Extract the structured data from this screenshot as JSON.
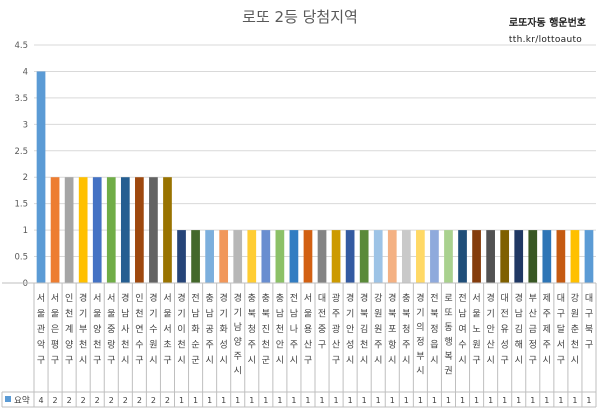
{
  "watermark": {
    "title": "로또자동 행운번호",
    "url": "tth.kr/lottoauto"
  },
  "chart_data": {
    "type": "bar",
    "title": "로또 2등 당첨지역",
    "xlabel": "",
    "ylabel": "",
    "ylim": [
      0,
      4.5
    ],
    "yticks": [
      0,
      0.5,
      1,
      1.5,
      2,
      2.5,
      3,
      3.5,
      4,
      4.5
    ],
    "ytick_labels": [
      "0",
      "0.5",
      "1",
      "1.5",
      "2",
      "2.5",
      "3",
      "3.5",
      "4",
      "4.5"
    ],
    "grid": true,
    "legend": "bottom-table",
    "series": [
      {
        "name": "요약",
        "color": "#5B9BD5"
      }
    ],
    "categories": [
      "서울 관악구",
      "서울 은평구",
      "인천 계양구",
      "경기 부천시",
      "서울 양천구",
      "서울 중랑구",
      "경남 사천시",
      "인천 연수구",
      "경기 수원시",
      "서울 서초구",
      "경기 이천시",
      "전남 화순군",
      "충남 공주시",
      "경기 화성시",
      "경기 남양주시",
      "충북 청주시",
      "충북 진천군",
      "충남 천안시",
      "전남 나주시",
      "서울 용산구",
      "대전 중구",
      "광주 광산구",
      "경기 안성시",
      "경북 김천시",
      "강원 원주시",
      "경북 포항시",
      "충북 청주시",
      "경기 의정부시",
      "전북 정읍시",
      "로또 동행 복권",
      "전남 여수시",
      "서울 노원구",
      "경기 안산시",
      "대전 유성구",
      "경남 김해시",
      "부산 금정구",
      "제주 제주시",
      "대구 달서구",
      "강원 춘천시",
      "대구 북구"
    ],
    "axis_labels": [
      [
        "서",
        "울",
        "관",
        "악",
        "구"
      ],
      [
        "서",
        "울",
        "은",
        "평",
        "구"
      ],
      [
        "인",
        "천",
        "계",
        "양",
        "구"
      ],
      [
        "경",
        "기",
        "부",
        "천",
        "시"
      ],
      [
        "서",
        "울",
        "양",
        "천",
        "구"
      ],
      [
        "서",
        "울",
        "중",
        "랑",
        "구"
      ],
      [
        "경",
        "남",
        "사",
        "천",
        "시"
      ],
      [
        "인",
        "천",
        "연",
        "수",
        "구"
      ],
      [
        "경",
        "기",
        "수",
        "원",
        "시"
      ],
      [
        "서",
        "울",
        "서",
        "초",
        "구"
      ],
      [
        "경",
        "기",
        "이",
        "천",
        "시"
      ],
      [
        "전",
        "남",
        "화",
        "순",
        "군"
      ],
      [
        "충",
        "남",
        "공",
        "주",
        "시"
      ],
      [
        "경",
        "기",
        "화",
        "성",
        "시"
      ],
      [
        "경",
        "기",
        "남",
        "양",
        "주",
        "시"
      ],
      [
        "충",
        "북",
        "청",
        "주",
        "시"
      ],
      [
        "충",
        "북",
        "진",
        "천",
        "군"
      ],
      [
        "충",
        "남",
        "천",
        "안",
        "시"
      ],
      [
        "전",
        "남",
        "나",
        "주",
        "시"
      ],
      [
        "서",
        "울",
        "용",
        "산",
        "구"
      ],
      [
        "대",
        "전",
        "중",
        "구"
      ],
      [
        "광",
        "주",
        "광",
        "산",
        "구"
      ],
      [
        "경",
        "기",
        "안",
        "성",
        "시"
      ],
      [
        "경",
        "북",
        "김",
        "천",
        "시"
      ],
      [
        "강",
        "원",
        "원",
        "주",
        "시"
      ],
      [
        "경",
        "북",
        "포",
        "항",
        "시"
      ],
      [
        "충",
        "북",
        "청",
        "주",
        "시"
      ],
      [
        "경",
        "기",
        "의",
        "정",
        "부",
        "시"
      ],
      [
        "전",
        "북",
        "정",
        "읍",
        "시"
      ],
      [
        "로",
        "또",
        "동",
        "행",
        "복",
        "권"
      ],
      [
        "전",
        "남",
        "여",
        "수",
        "시"
      ],
      [
        "서",
        "울",
        "노",
        "원",
        "구"
      ],
      [
        "경",
        "기",
        "안",
        "산",
        "시"
      ],
      [
        "대",
        "전",
        "유",
        "성",
        "구"
      ],
      [
        "경",
        "남",
        "김",
        "해",
        "시"
      ],
      [
        "부",
        "산",
        "금",
        "정",
        "구"
      ],
      [
        "제",
        "주",
        "제",
        "주",
        "시"
      ],
      [
        "대",
        "구",
        "달",
        "서",
        "구"
      ],
      [
        "강",
        "원",
        "춘",
        "천",
        "시"
      ],
      [
        "대",
        "구",
        "북",
        "구"
      ]
    ],
    "values": [
      4,
      2,
      2,
      2,
      2,
      2,
      2,
      2,
      2,
      2,
      1,
      1,
      1,
      1,
      1,
      1,
      1,
      1,
      1,
      1,
      1,
      1,
      1,
      1,
      1,
      1,
      1,
      1,
      1,
      1,
      1,
      1,
      1,
      1,
      1,
      1,
      1,
      1,
      1,
      1
    ],
    "bar_colors": [
      "#5B9BD5",
      "#ED7D31",
      "#A5A5A5",
      "#FFC000",
      "#4472C4",
      "#70AD47",
      "#255E91",
      "#9E480E",
      "#636363",
      "#997300",
      "#264478",
      "#43682B",
      "#7CAFDD",
      "#F1975A",
      "#B7B7B7",
      "#FFCD33",
      "#698ED0",
      "#8CC168",
      "#327DC2",
      "#D26012",
      "#848484",
      "#CC9A00",
      "#335AA1",
      "#5A8A39",
      "#9DC3E6",
      "#F4B183",
      "#C9C9C9",
      "#FFD966",
      "#8FAADC",
      "#A9D18E",
      "#1F4E79",
      "#843C0C",
      "#525252",
      "#7F6000",
      "#203864",
      "#385723",
      "#2E75B6",
      "#C55A11",
      "#FFC000",
      "#5B9BD5"
    ]
  }
}
